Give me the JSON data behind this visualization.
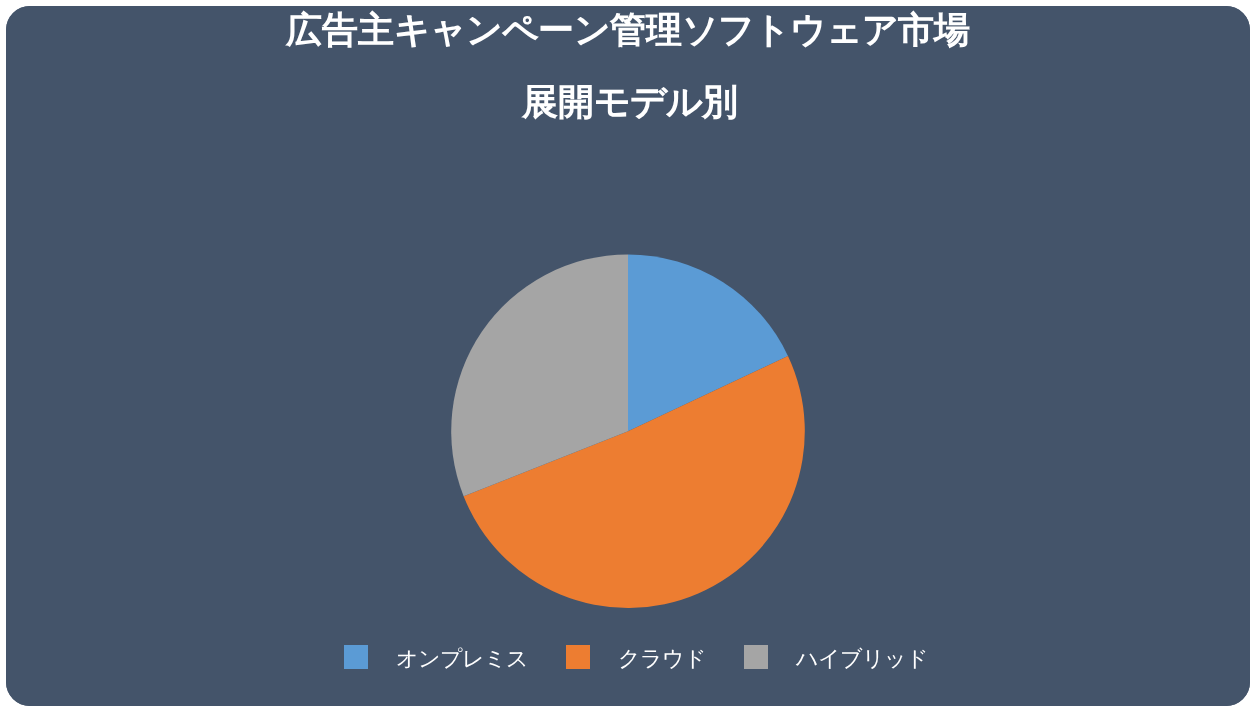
{
  "chart_data": {
    "type": "pie",
    "title": "広告主キャンペーン管理ソフトウェア市場",
    "subtitle": "展開モデル別",
    "categories": [
      "オンプレミス",
      "クラウド",
      "ハイブリッド"
    ],
    "values": [
      18,
      51,
      31
    ],
    "colors": [
      "#5b9bd5",
      "#ed7d31",
      "#a5a5a5"
    ],
    "legend": "bottom"
  }
}
